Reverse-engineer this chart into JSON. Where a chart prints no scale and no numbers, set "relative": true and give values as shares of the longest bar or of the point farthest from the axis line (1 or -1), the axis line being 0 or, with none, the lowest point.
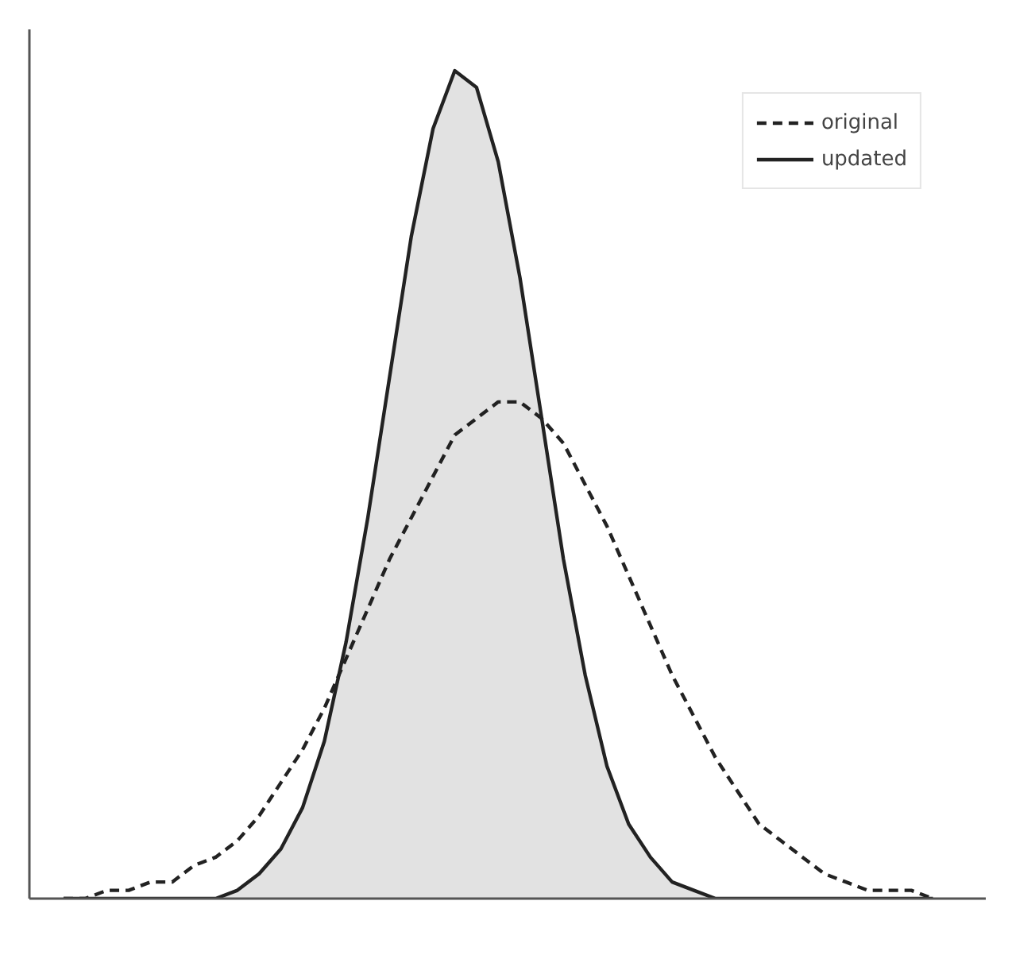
{
  "chart_data": {
    "type": "line",
    "relative": true,
    "categories": [
      null,
      null,
      null,
      null,
      null,
      null,
      null,
      null,
      null,
      null,
      null,
      null,
      null,
      null,
      null,
      null,
      null,
      null,
      null,
      null,
      null,
      null,
      null,
      null,
      null,
      null,
      null,
      null,
      null,
      null,
      null,
      null,
      null,
      null,
      null,
      null,
      null,
      null,
      null,
      null,
      null
    ],
    "series": [
      {
        "name": "original",
        "line_style": "dashed",
        "color": "#222222",
        "values": [
          0.0,
          0.0,
          0.01,
          0.01,
          0.02,
          0.02,
          0.04,
          0.05,
          0.07,
          0.1,
          0.14,
          0.18,
          0.23,
          0.29,
          0.35,
          0.41,
          0.46,
          0.51,
          0.56,
          0.58,
          0.6,
          0.6,
          0.58,
          0.55,
          0.5,
          0.45,
          0.39,
          0.33,
          0.27,
          0.22,
          0.17,
          0.13,
          0.09,
          0.07,
          0.05,
          0.03,
          0.02,
          0.01,
          0.01,
          0.01,
          0.0
        ]
      },
      {
        "name": "updated",
        "type": "area",
        "line_style": "solid",
        "color": "#222222",
        "values": [
          0,
          0,
          0,
          0,
          0,
          0,
          0.0,
          0.0,
          0.01,
          0.03,
          0.06,
          0.11,
          0.19,
          0.31,
          0.46,
          0.63,
          0.8,
          0.93,
          1.0,
          0.98,
          0.89,
          0.75,
          0.58,
          0.41,
          0.27,
          0.16,
          0.09,
          0.05,
          0.02,
          0.01,
          0.0,
          0,
          0,
          0,
          0,
          0,
          0,
          0,
          0,
          0,
          0
        ]
      }
    ],
    "legend": "top right",
    "grid": false,
    "marker": "none"
  }
}
